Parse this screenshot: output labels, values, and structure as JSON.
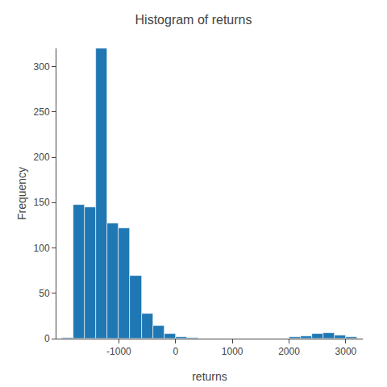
{
  "chart_data": {
    "type": "histogram",
    "title": "Histogram of returns",
    "xlabel": "returns",
    "ylabel": "Frequency",
    "bins": [
      -2000,
      -1800,
      -1600,
      -1400,
      -1200,
      -1000,
      -800,
      -600,
      -400,
      -200,
      0,
      200,
      400,
      600,
      800,
      1000,
      1200,
      1400,
      1600,
      1800,
      2000,
      2200,
      2400,
      2600,
      2800,
      3000,
      3200
    ],
    "values": [
      1,
      148,
      145,
      320,
      127,
      122,
      69,
      28,
      14,
      5,
      2,
      1,
      0,
      0,
      0,
      0,
      0,
      0,
      0,
      0,
      2,
      3,
      5,
      6,
      4,
      2
    ],
    "xlim": [
      -2100,
      3300
    ],
    "ylim": [
      0,
      320
    ],
    "xticks": [
      -1000,
      0,
      1000,
      2000,
      3000
    ],
    "yticks": [
      0,
      50,
      100,
      150,
      200,
      250,
      300
    ],
    "grid": false
  }
}
